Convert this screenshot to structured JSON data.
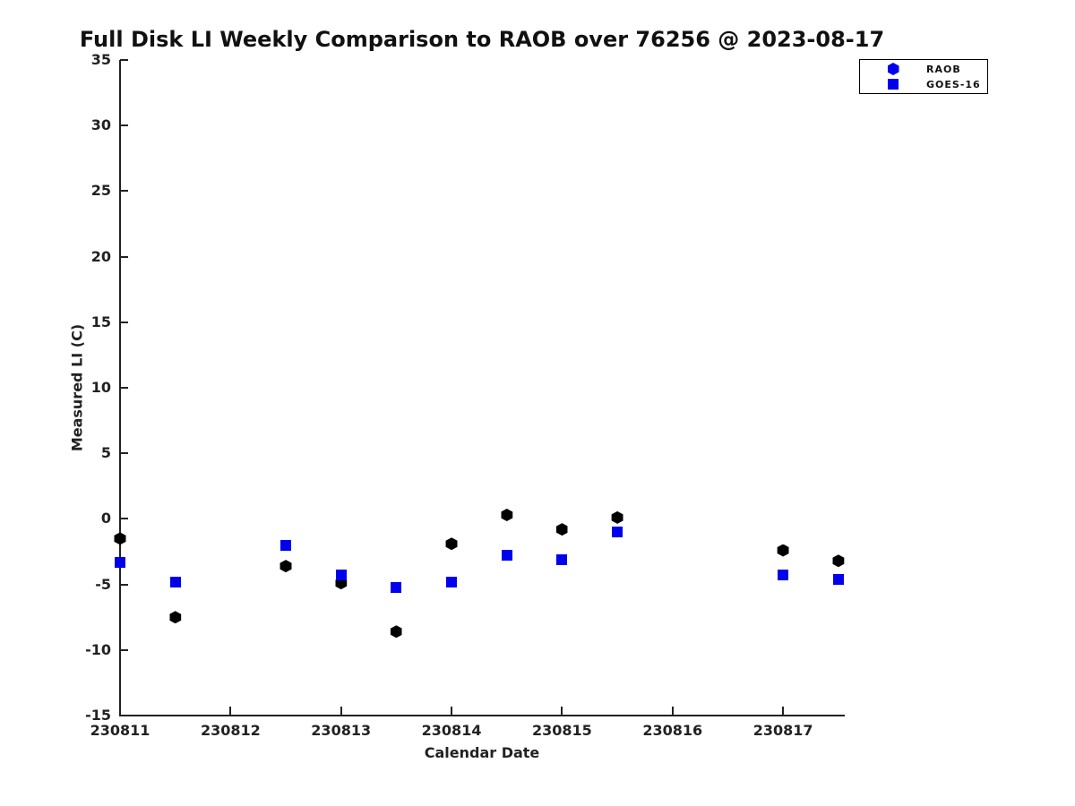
{
  "chart_data": {
    "type": "scatter",
    "title": "Full Disk LI Weekly Comparison to RAOB over 76256 @ 2023-08-17",
    "xlabel": "Calendar Date",
    "ylabel": "Measured LI (C)",
    "xlim": [
      230811,
      230817.55
    ],
    "ylim": [
      -15,
      35
    ],
    "grid": false,
    "x_ticks": [
      {
        "value": 230811,
        "label": "230811"
      },
      {
        "value": 230812,
        "label": "230812"
      },
      {
        "value": 230813,
        "label": "230813"
      },
      {
        "value": 230814,
        "label": "230814"
      },
      {
        "value": 230815,
        "label": "230815"
      },
      {
        "value": 230816,
        "label": "230816"
      },
      {
        "value": 230817,
        "label": "230817"
      }
    ],
    "y_ticks": [
      {
        "value": 35,
        "label": "35"
      },
      {
        "value": 30,
        "label": "30"
      },
      {
        "value": 25,
        "label": "25"
      },
      {
        "value": 20,
        "label": "20"
      },
      {
        "value": 15,
        "label": "15"
      },
      {
        "value": 10,
        "label": "10"
      },
      {
        "value": 5,
        "label": "5"
      },
      {
        "value": 0,
        "label": "0"
      },
      {
        "value": -5,
        "label": "-5"
      },
      {
        "value": -10,
        "label": "-10"
      },
      {
        "value": -15,
        "label": "-15"
      }
    ],
    "legend": {
      "position": "upper right",
      "entries": [
        {
          "label": "RAOB",
          "marker": "hexagon",
          "color": "#0000ee"
        },
        {
          "label": "GOES-16",
          "marker": "square",
          "color": "#0000ee"
        }
      ]
    },
    "series": [
      {
        "name": "RAOB",
        "marker": "hexagon",
        "color": "#000000",
        "points": [
          [
            230811.0,
            -1.5
          ],
          [
            230811.5,
            -7.5
          ],
          [
            230812.5,
            -3.6
          ],
          [
            230813.0,
            -4.9
          ],
          [
            230813.5,
            -8.6
          ],
          [
            230814.0,
            -1.9
          ],
          [
            230814.5,
            0.3
          ],
          [
            230815.0,
            -0.8
          ],
          [
            230815.5,
            0.1
          ],
          [
            230817.0,
            -2.4
          ],
          [
            230817.5,
            -3.2
          ]
        ]
      },
      {
        "name": "GOES-16",
        "marker": "square",
        "color": "#0000ee",
        "points": [
          [
            230811.0,
            -3.3
          ],
          [
            230811.5,
            -4.8
          ],
          [
            230812.5,
            -2.0
          ],
          [
            230813.0,
            -4.3
          ],
          [
            230813.5,
            -5.2
          ],
          [
            230814.0,
            -4.8
          ],
          [
            230814.5,
            -2.8
          ],
          [
            230815.0,
            -3.1
          ],
          [
            230815.5,
            -1.0
          ],
          [
            230817.0,
            -4.3
          ],
          [
            230817.5,
            -4.6
          ]
        ]
      }
    ],
    "colors": {
      "background": "#ffffff",
      "axis": "#222222",
      "raob_points": "#000000",
      "goes_points": "#0000ee"
    }
  }
}
